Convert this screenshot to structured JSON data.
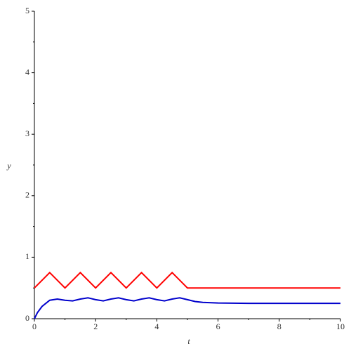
{
  "chart_data": {
    "type": "line",
    "xlabel": "t",
    "ylabel": "y",
    "xlim": [
      0,
      10
    ],
    "ylim": [
      0,
      5
    ],
    "xticks": [
      0,
      2,
      4,
      6,
      8,
      10
    ],
    "yticks": [
      0,
      1,
      2,
      3,
      4,
      5
    ],
    "series": [
      {
        "color": "#ff0000",
        "x": [
          0,
          0.5,
          1,
          1.5,
          2,
          2.5,
          3,
          3.5,
          4,
          4.5,
          5,
          10
        ],
        "values": [
          0.5,
          0.75,
          0.5,
          0.75,
          0.5,
          0.75,
          0.5,
          0.75,
          0.5,
          0.75,
          0.5,
          0.5
        ]
      },
      {
        "color": "#0000cc",
        "x": [
          0,
          0.1,
          0.25,
          0.5,
          0.75,
          1,
          1.25,
          1.5,
          1.75,
          2,
          2.25,
          2.5,
          2.75,
          3,
          3.25,
          3.5,
          3.75,
          4,
          4.25,
          4.5,
          4.75,
          5,
          5.25,
          5.5,
          6,
          7,
          8,
          10
        ],
        "values": [
          0,
          0.1,
          0.2,
          0.3,
          0.32,
          0.3,
          0.29,
          0.32,
          0.34,
          0.31,
          0.29,
          0.32,
          0.34,
          0.31,
          0.29,
          0.32,
          0.34,
          0.31,
          0.29,
          0.32,
          0.34,
          0.31,
          0.28,
          0.265,
          0.255,
          0.25,
          0.25,
          0.25
        ]
      }
    ]
  }
}
